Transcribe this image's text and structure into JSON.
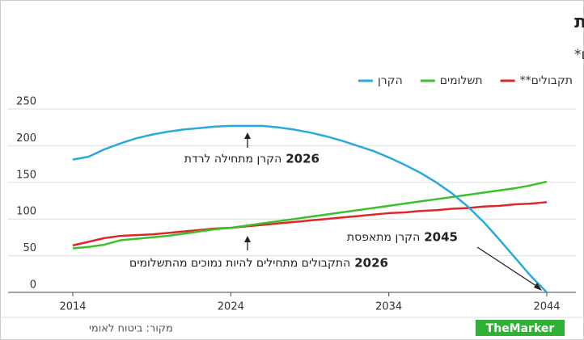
{
  "chart_data": {
    "type": "line",
    "title": "בעוד פחות מעשור – הקרן נופלת",
    "subtitle": "תחזית התקבולים, התשלומים והקרן של המוסד לביטוח לאומי, במיליארדי שקלים*",
    "x": [
      2014,
      2015,
      2016,
      2017,
      2018,
      2019,
      2020,
      2021,
      2022,
      2023,
      2024,
      2025,
      2026,
      2027,
      2028,
      2029,
      2030,
      2031,
      2032,
      2033,
      2034,
      2035,
      2036,
      2037,
      2038,
      2039,
      2040,
      2041,
      2042,
      2043,
      2044
    ],
    "series": [
      {
        "name": "תקבולים**",
        "color": "#e0262a",
        "values": [
          64,
          69,
          74,
          77,
          78,
          79,
          81,
          83,
          85,
          87,
          88,
          90,
          92,
          94,
          96,
          98,
          100,
          102,
          104,
          106,
          108,
          109,
          111,
          112,
          114,
          115,
          117,
          118,
          120,
          121,
          123
        ]
      },
      {
        "name": "תשלומים",
        "color": "#3bbf2a",
        "values": [
          60,
          62,
          65,
          71,
          73,
          75,
          77,
          80,
          83,
          86,
          88,
          91,
          94,
          97,
          100,
          103,
          106,
          109,
          112,
          115,
          118,
          121,
          124,
          127,
          130,
          133,
          136,
          139,
          142,
          146,
          151
        ]
      },
      {
        "name": "הקרן",
        "color": "#2aa9dc",
        "values": [
          181,
          185,
          195,
          203,
          210,
          215,
          219,
          222,
          224,
          226,
          227,
          227,
          227,
          225,
          222,
          218,
          213,
          207,
          200,
          193,
          184,
          174,
          163,
          150,
          135,
          117,
          96,
          72,
          47,
          22,
          0
        ]
      }
    ],
    "xlim": [
      2014,
      2044
    ],
    "xticks": [
      2014,
      2024,
      2034,
      2044
    ],
    "ylim": [
      0,
      250
    ],
    "yticks": [
      0,
      50,
      100,
      150,
      200,
      250
    ],
    "grid": true,
    "legend": "top-right",
    "annotations": [
      {
        "year": "2026",
        "text": "הקרן מתחילה לרדת"
      },
      {
        "year": "2045",
        "text": "הקרן מתאפסת"
      },
      {
        "year": "2026",
        "text": "התקבולים מתחילים להיות נמוכים מהתשלומים"
      }
    ],
    "source": "מקור: ביטוח לאומי",
    "logo": "TheMarker"
  }
}
